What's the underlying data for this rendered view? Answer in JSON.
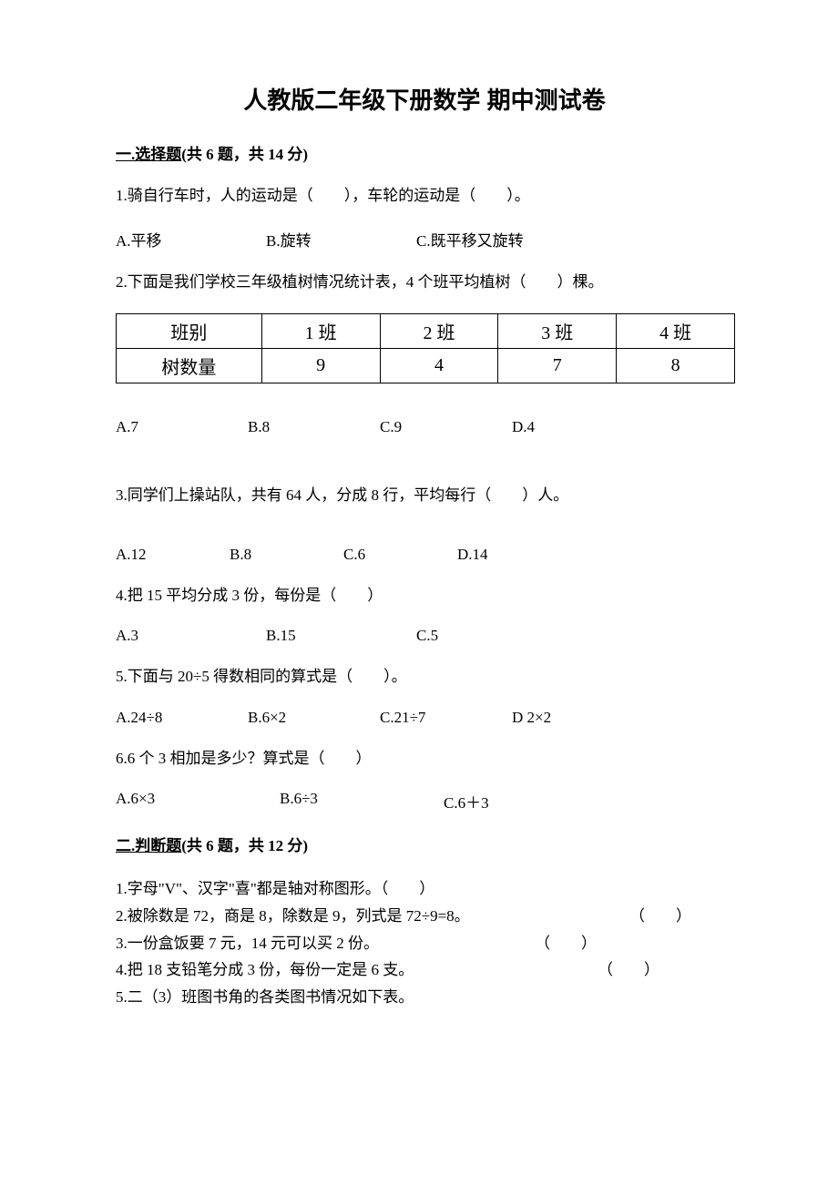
{
  "title": "人教版二年级下册数学 期中测试卷",
  "section1": {
    "header_prefix": "一.选择题",
    "header_suffix": "(共 6 题，共 14 分)",
    "q1": {
      "text": "1.骑自行车时，人的运动是（　　），车轮的运动是（　　）。",
      "opts": {
        "a": "A.平移",
        "b": "B.旋转",
        "c": "C.既平移又旋转"
      }
    },
    "q2": {
      "text": "2.下面是我们学校三年级植树情况统计表，4 个班平均植树（　　）棵。",
      "table": {
        "header_label": "班别",
        "columns": [
          "1 班",
          "2 班",
          "3 班",
          "4 班"
        ],
        "row_label": "树数量",
        "values": [
          "9",
          "4",
          "7",
          "8"
        ],
        "border_color": "#000000",
        "cell_fontsize": 20
      },
      "opts": {
        "a": "A.7",
        "b": "B.8",
        "c": "C.9",
        "d": "D.4"
      }
    },
    "q3": {
      "text": "3.同学们上操站队，共有 64 人，分成 8 行，平均每行（　　）人。",
      "opts": {
        "a": "A.12",
        "b": "B.8",
        "c": "C.6",
        "d": "D.14"
      }
    },
    "q4": {
      "text": "4.把 15 平均分成 3 份，每份是（　　）",
      "opts": {
        "a": "A.3",
        "b": "B.15",
        "c": "C.5"
      }
    },
    "q5": {
      "text": "5.下面与 20÷5 得数相同的算式是（　　）。",
      "opts": {
        "a": "A.24÷8",
        "b": "B.6×2",
        "c": "C.21÷7",
        "d": "D 2×2"
      }
    },
    "q6": {
      "text": "6.6 个 3 相加是多少？算式是（　　）",
      "opts": {
        "a": "A.6×3",
        "b": "B.6÷3",
        "c": "C.6＋3"
      }
    }
  },
  "section2": {
    "header_prefix": "二.判断题",
    "header_suffix": "(共 6 题，共 12 分)",
    "items": {
      "j1_text": "1.字母\"V\"、汉字\"喜\"都是轴对称图形。（　　）",
      "j2_text": "2.被除数是 72，商是 8，除数是 9，列式是 72÷9=8。",
      "j2_blank": "（　　）",
      "j3_text": "3.一份盒饭要 7 元，14 元可以买 2 份。",
      "j3_blank": "（　　）",
      "j4_text": "4.把 18 支铅笔分成 3 份，每份一定是 6 支。",
      "j4_blank": "（　　）",
      "j5_text": "5.二（3）班图书角的各类图书情况如下表。"
    }
  },
  "colors": {
    "text": "#000000",
    "background": "#ffffff",
    "table_border": "#000000"
  }
}
